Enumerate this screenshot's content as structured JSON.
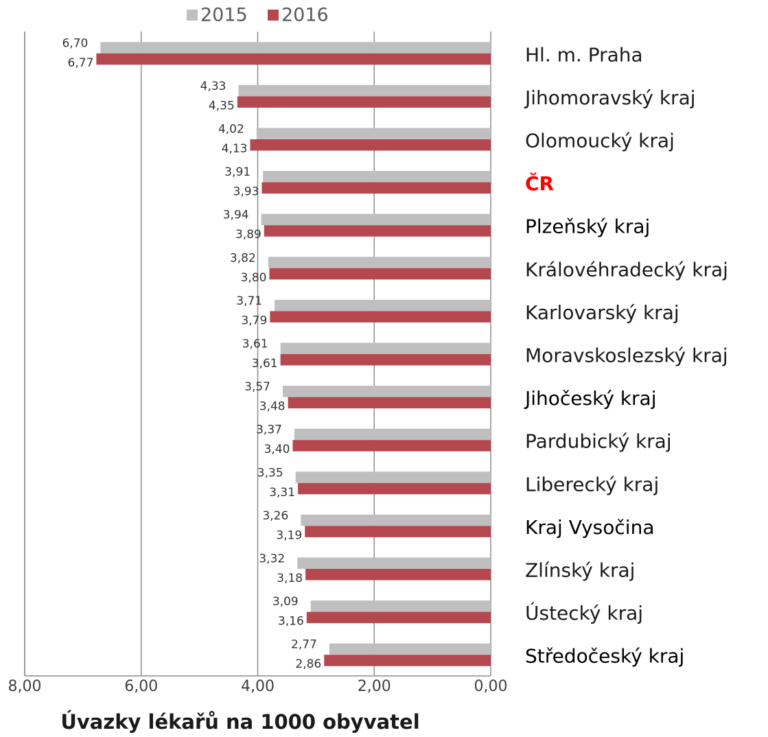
{
  "chart_data": {
    "type": "bar",
    "orientation": "horizontal",
    "x_label": "Úvazky lékařů na 1000 obyvatel",
    "categories": [
      "Hl. m. Praha",
      "Jihomoravský kraj",
      "Olomoucký kraj",
      "ČR",
      "Plzeňský kraj",
      "Královéhradecký kraj",
      "Karlovarský kraj",
      "Moravskoslezský kraj",
      "Jihočeský kraj",
      "Pardubický kraj",
      "Liberecký kraj",
      "Kraj Vysočina",
      "Zlínský kraj",
      "Ústecký kraj",
      "Středočeský kraj"
    ],
    "label_colors": [
      "#1a1a1a",
      "#1a1a1a",
      "#1a1a1a",
      "#ff0000",
      "#000000",
      "#1a1a1a",
      "#1a1a1a",
      "#1a1a1a",
      "#000000",
      "#1a1a1a",
      "#1a1a1a",
      "#000000",
      "#1a1a1a",
      "#1a1a1a",
      "#000000"
    ],
    "series": [
      {
        "name": "2015",
        "color": "#bfbfbf",
        "values": [
          6.7,
          4.33,
          4.02,
          3.91,
          3.94,
          3.82,
          3.71,
          3.61,
          3.57,
          3.37,
          3.35,
          3.26,
          3.32,
          3.09,
          2.77
        ],
        "value_labels": [
          "6,70",
          "4,33",
          "4,02",
          "3,91",
          "3,94",
          "3,82",
          "3,71",
          "3,61",
          "3,57",
          "3,37",
          "3,35",
          "3,26",
          "3,32",
          "3,09",
          "2,77"
        ]
      },
      {
        "name": "2016",
        "color": "#b5484f",
        "values": [
          6.77,
          4.35,
          4.13,
          3.93,
          3.89,
          3.8,
          3.79,
          3.61,
          3.48,
          3.4,
          3.31,
          3.19,
          3.18,
          3.16,
          2.86
        ],
        "value_labels": [
          "6,77",
          "4,35",
          "4,13",
          "3,93",
          "3,89",
          "3,80",
          "3,79",
          "3,61",
          "3,48",
          "3,40",
          "3,31",
          "3,19",
          "3,18",
          "3,16",
          "2,86"
        ]
      }
    ],
    "xlim": [
      8,
      0
    ],
    "xticks": [
      {
        "value": 8,
        "label": "8,00"
      },
      {
        "value": 6,
        "label": "6,00"
      },
      {
        "value": 4,
        "label": "4,00"
      },
      {
        "value": 2,
        "label": "2,00"
      },
      {
        "value": 0,
        "label": "0,00"
      }
    ],
    "grid": true,
    "legend": "top"
  }
}
